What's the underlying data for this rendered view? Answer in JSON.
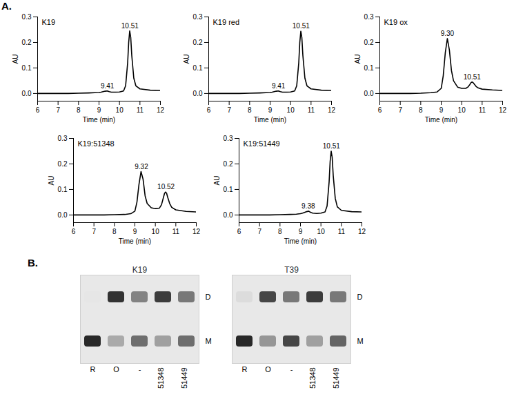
{
  "chart_data": [
    {
      "type": "line",
      "title": "K19",
      "xlabel": "Time (min)",
      "ylabel": "AU",
      "color": "#000000",
      "annotations": [
        {
          "text": "A."
        },
        {
          "text": "9.41",
          "x": 9.41,
          "y": 0.01
        },
        {
          "text": "10.51",
          "x": 10.51,
          "y": 0.245
        }
      ],
      "x": [
        6,
        6.5,
        7,
        7.5,
        8,
        8.5,
        8.8,
        9.0,
        9.1,
        9.2,
        9.3,
        9.4,
        9.5,
        9.6,
        9.8,
        10.0,
        10.2,
        10.3,
        10.4,
        10.45,
        10.5,
        10.55,
        10.6,
        10.7,
        10.8,
        11.0,
        11.5,
        12
      ],
      "values": [
        0,
        0,
        0,
        0,
        0.001,
        0.002,
        0.003,
        0.004,
        0.005,
        0.007,
        0.009,
        0.01,
        0.007,
        0.005,
        0.005,
        0.006,
        0.01,
        0.03,
        0.12,
        0.2,
        0.245,
        0.22,
        0.15,
        0.06,
        0.03,
        0.018,
        0.013,
        0.012
      ],
      "xlim": [
        6,
        12
      ],
      "xticks": [
        6,
        7,
        8,
        9,
        10,
        11,
        12
      ],
      "ylim": [
        -0.03,
        0.3
      ],
      "yticks": [
        {
          "value": 0,
          "label": "0.0"
        },
        {
          "value": 0.1,
          "label": "0.1"
        },
        {
          "value": 0.2,
          "label": "0.2"
        },
        {
          "value": 0.3,
          "label": "0.3"
        }
      ]
    },
    {
      "type": "line",
      "title": "K19 red",
      "xlabel": "Time (min)",
      "ylabel": "AU",
      "color": "#000000",
      "annotations": [
        {
          "text": "9.41",
          "x": 9.41,
          "y": 0.01
        },
        {
          "text": "10.51",
          "x": 10.51,
          "y": 0.245
        }
      ],
      "x": [
        6,
        6.5,
        7,
        7.5,
        8,
        8.5,
        8.8,
        9.0,
        9.1,
        9.2,
        9.3,
        9.4,
        9.5,
        9.6,
        9.8,
        10.0,
        10.2,
        10.3,
        10.4,
        10.45,
        10.5,
        10.55,
        10.6,
        10.7,
        10.8,
        11.0,
        11.5,
        12
      ],
      "values": [
        0,
        0,
        0,
        0,
        0.001,
        0.002,
        0.003,
        0.004,
        0.005,
        0.007,
        0.009,
        0.01,
        0.007,
        0.005,
        0.005,
        0.006,
        0.01,
        0.03,
        0.12,
        0.2,
        0.244,
        0.22,
        0.15,
        0.06,
        0.03,
        0.018,
        0.013,
        0.012
      ],
      "xlim": [
        6,
        12
      ],
      "xticks": [
        6,
        7,
        8,
        9,
        10,
        11,
        12
      ],
      "ylim": [
        -0.03,
        0.3
      ],
      "yticks": [
        {
          "value": 0,
          "label": "0.0"
        },
        {
          "value": 0.1,
          "label": "0.1"
        },
        {
          "value": 0.2,
          "label": "0.2"
        },
        {
          "value": 0.3,
          "label": "0.3"
        }
      ]
    },
    {
      "type": "line",
      "title": "K19 ox",
      "xlabel": "Time (min)",
      "ylabel": "AU",
      "color": "#000000",
      "annotations": [
        {
          "text": "9.30",
          "x": 9.3,
          "y": 0.215
        },
        {
          "text": "10.51",
          "x": 10.51,
          "y": 0.045
        }
      ],
      "x": [
        6,
        6.5,
        7,
        7.5,
        8,
        8.5,
        8.8,
        9.0,
        9.1,
        9.2,
        9.3,
        9.4,
        9.5,
        9.6,
        9.8,
        10.0,
        10.2,
        10.3,
        10.4,
        10.45,
        10.5,
        10.55,
        10.6,
        10.7,
        10.8,
        11.0,
        11.5,
        12
      ],
      "values": [
        0,
        0,
        0,
        0,
        0.001,
        0.003,
        0.006,
        0.02,
        0.07,
        0.16,
        0.215,
        0.17,
        0.09,
        0.05,
        0.025,
        0.02,
        0.02,
        0.025,
        0.035,
        0.042,
        0.045,
        0.043,
        0.038,
        0.028,
        0.022,
        0.017,
        0.014,
        0.012
      ],
      "xlim": [
        6,
        12
      ],
      "xticks": [
        6,
        7,
        8,
        9,
        10,
        11,
        12
      ],
      "ylim": [
        -0.03,
        0.3
      ],
      "yticks": [
        {
          "value": 0,
          "label": "0.0"
        },
        {
          "value": 0.1,
          "label": "0.1"
        },
        {
          "value": 0.2,
          "label": "0.2"
        },
        {
          "value": 0.3,
          "label": "0.3"
        }
      ]
    },
    {
      "type": "line",
      "title": "K19:51348",
      "xlabel": "Time (min)",
      "ylabel": "AU",
      "color": "#000000",
      "annotations": [
        {
          "text": "9.32",
          "x": 9.32,
          "y": 0.17
        },
        {
          "text": "10.52",
          "x": 10.52,
          "y": 0.09
        }
      ],
      "x": [
        6,
        6.5,
        7,
        7.5,
        8,
        8.5,
        8.8,
        9.0,
        9.1,
        9.2,
        9.3,
        9.4,
        9.5,
        9.6,
        9.8,
        10.0,
        10.2,
        10.3,
        10.4,
        10.45,
        10.5,
        10.55,
        10.6,
        10.7,
        10.8,
        11.0,
        11.5,
        12
      ],
      "values": [
        0,
        0,
        0,
        0,
        0.001,
        0.002,
        0.005,
        0.015,
        0.05,
        0.12,
        0.17,
        0.14,
        0.075,
        0.045,
        0.028,
        0.025,
        0.027,
        0.04,
        0.07,
        0.085,
        0.09,
        0.085,
        0.07,
        0.045,
        0.03,
        0.02,
        0.014,
        0.012
      ],
      "xlim": [
        6,
        12
      ],
      "xticks": [
        6,
        7,
        8,
        9,
        10,
        11,
        12
      ],
      "ylim": [
        -0.03,
        0.3
      ],
      "yticks": [
        {
          "value": 0,
          "label": "0.0"
        },
        {
          "value": 0.1,
          "label": "0.1"
        },
        {
          "value": 0.2,
          "label": "0.2"
        },
        {
          "value": 0.3,
          "label": "0.3"
        }
      ]
    },
    {
      "type": "line",
      "title": "K19:51449",
      "xlabel": "Time (min)",
      "ylabel": "AU",
      "color": "#000000",
      "annotations": [
        {
          "text": "9.38",
          "x": 9.38,
          "y": 0.015
        },
        {
          "text": "10.51",
          "x": 10.51,
          "y": 0.25
        }
      ],
      "x": [
        6,
        6.5,
        7,
        7.5,
        8,
        8.5,
        8.8,
        9.0,
        9.1,
        9.2,
        9.3,
        9.4,
        9.5,
        9.6,
        9.8,
        10.0,
        10.2,
        10.3,
        10.4,
        10.45,
        10.5,
        10.55,
        10.6,
        10.7,
        10.8,
        11.0,
        11.5,
        12
      ],
      "values": [
        0,
        0,
        0,
        0,
        0.001,
        0.002,
        0.003,
        0.005,
        0.007,
        0.01,
        0.013,
        0.015,
        0.01,
        0.007,
        0.006,
        0.007,
        0.012,
        0.035,
        0.13,
        0.21,
        0.25,
        0.225,
        0.155,
        0.065,
        0.032,
        0.018,
        0.013,
        0.012
      ],
      "xlim": [
        6,
        12
      ],
      "xticks": [
        6,
        7,
        8,
        9,
        10,
        11,
        12
      ],
      "ylim": [
        -0.03,
        0.3
      ],
      "yticks": [
        {
          "value": 0,
          "label": "0.0"
        },
        {
          "value": 0.1,
          "label": "0.1"
        },
        {
          "value": 0.2,
          "label": "0.2"
        },
        {
          "value": 0.3,
          "label": "0.3"
        }
      ]
    },
    {
      "type": "gel",
      "title": "K19",
      "annotations": [
        {
          "text": "B."
        }
      ],
      "categories": [
        "R",
        "O",
        "-",
        "51348",
        "51449"
      ],
      "series": [
        {
          "name": "D",
          "values": [
            0,
            0.9,
            0.5,
            0.85,
            0.55
          ]
        },
        {
          "name": "M",
          "values": [
            0.95,
            0.3,
            0.6,
            0.35,
            0.6
          ]
        }
      ]
    },
    {
      "type": "gel",
      "title": "T39",
      "categories": [
        "R",
        "O",
        "-",
        "51348",
        "51449"
      ],
      "series": [
        {
          "name": "D",
          "values": [
            0.05,
            0.8,
            0.55,
            0.85,
            0.55
          ]
        },
        {
          "name": "M",
          "values": [
            0.95,
            0.4,
            0.8,
            0.35,
            0.65
          ]
        }
      ]
    }
  ]
}
